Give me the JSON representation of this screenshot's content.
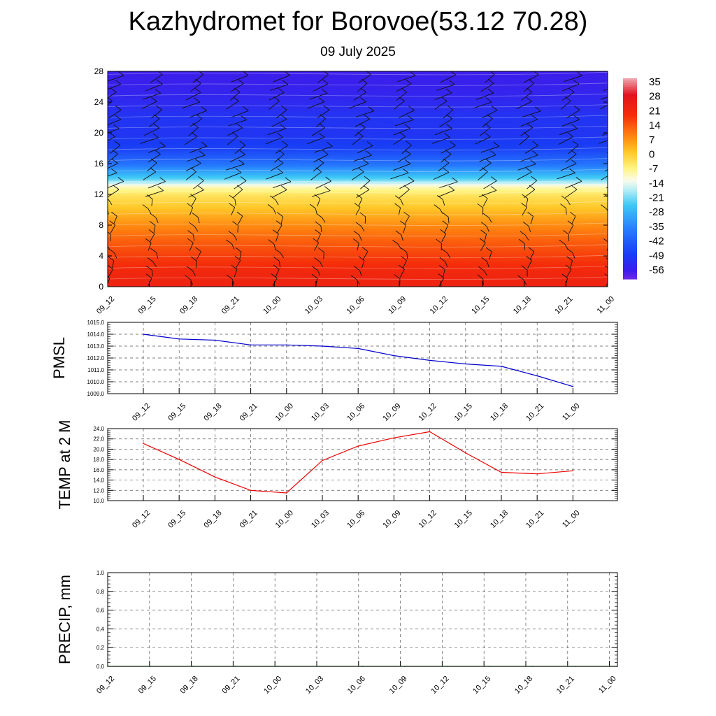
{
  "header": {
    "title": "Kazhydromet for Borovoe(53.12 70.28)",
    "subtitle": "09 July 2025"
  },
  "time_labels": [
    "09_12",
    "09_15",
    "09_18",
    "09_21",
    "10_00",
    "10_03",
    "10_06",
    "10_09",
    "10_12",
    "10_15",
    "10_18",
    "10_21",
    "11_00"
  ],
  "chart_data": [
    {
      "type": "heatmap",
      "title": "",
      "ylabel": "",
      "ylim": [
        0,
        28
      ],
      "yticks": [
        0,
        4,
        8,
        12,
        16,
        20,
        24,
        28
      ],
      "x": [
        "09_12",
        "09_15",
        "09_18",
        "09_21",
        "10_00",
        "10_03",
        "10_06",
        "10_09",
        "10_12",
        "10_15",
        "10_18",
        "10_21",
        "11_00"
      ],
      "colorbar": {
        "labels": [
          "35",
          "28",
          "21",
          "14",
          "7",
          "0",
          "-7",
          "-14",
          "-21",
          "-28",
          "-35",
          "-42",
          "-49",
          "-56"
        ],
        "range": [
          -60,
          38
        ]
      },
      "temperature_profile": {
        "heights": [
          0,
          2,
          4,
          6,
          8,
          10,
          12,
          13,
          14,
          16,
          18,
          20,
          22,
          24,
          26,
          28
        ],
        "values": [
          24,
          22,
          18,
          14,
          9,
          3,
          -3,
          -9,
          -22,
          -38,
          -47,
          -50,
          -50,
          -53,
          -55,
          -56
        ]
      },
      "wind_barbs": true,
      "grid": false
    },
    {
      "type": "line",
      "title": "",
      "ylabel": "PMSL",
      "ylim": [
        1009.0,
        1015.0
      ],
      "yticks": [
        "1009.0",
        "1010.0",
        "1011.0",
        "1012.0",
        "1013.0",
        "1014.0",
        "1015.0"
      ],
      "x": [
        "09_12",
        "09_15",
        "09_18",
        "09_21",
        "10_00",
        "10_03",
        "10_06",
        "10_09",
        "10_12",
        "10_15",
        "10_18",
        "10_21",
        "11_00"
      ],
      "series": [
        {
          "values": [
            1014.0,
            1013.6,
            1013.5,
            1013.1,
            1013.1,
            1013.0,
            1012.8,
            1012.2,
            1011.8,
            1011.5,
            1011.3,
            1010.5,
            1009.6
          ]
        }
      ],
      "color": "#0000cc",
      "grid": true
    },
    {
      "type": "line",
      "title": "",
      "ylabel": "TEMP at 2 M",
      "ylim": [
        10.0,
        24.0
      ],
      "yticks": [
        "10.0",
        "12.0",
        "14.0",
        "16.0",
        "18.0",
        "20.0",
        "22.0",
        "24.0"
      ],
      "x": [
        "09_12",
        "09_15",
        "09_18",
        "09_21",
        "10_00",
        "10_03",
        "10_06",
        "10_09",
        "10_12",
        "10_15",
        "10_18",
        "10_21",
        "11_00"
      ],
      "series": [
        {
          "values": [
            21.1,
            18.0,
            14.6,
            12.0,
            11.5,
            17.8,
            20.6,
            22.2,
            23.4,
            19.3,
            15.5,
            15.2,
            15.8
          ]
        }
      ],
      "color": "#ee0000",
      "grid": true
    },
    {
      "type": "line",
      "title": "",
      "ylabel": "PRECIP, mm",
      "ylim": [
        0.0,
        1.0
      ],
      "yticks": [
        "0.0",
        "0.2",
        "0.4",
        "0.6",
        "0.8",
        "1.0"
      ],
      "x": [
        "09_12",
        "09_15",
        "09_18",
        "09_21",
        "10_00",
        "10_03",
        "10_06",
        "10_09",
        "10_12",
        "10_15",
        "10_18",
        "10_21",
        "11_00"
      ],
      "series": [
        {
          "values": [
            0,
            0,
            0,
            0,
            0,
            0,
            0,
            0,
            0,
            0,
            0,
            0,
            0
          ]
        }
      ],
      "color": "#007700",
      "grid": true
    }
  ]
}
